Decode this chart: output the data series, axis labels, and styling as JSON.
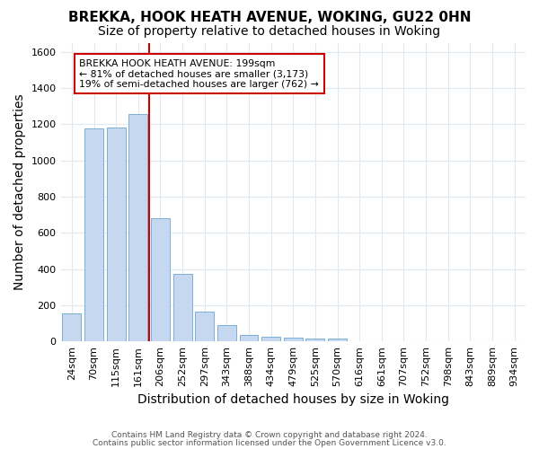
{
  "title1": "BREKKA, HOOK HEATH AVENUE, WOKING, GU22 0HN",
  "title2": "Size of property relative to detached houses in Woking",
  "xlabel": "Distribution of detached houses by size in Woking",
  "ylabel": "Number of detached properties",
  "categories": [
    "24sqm",
    "70sqm",
    "115sqm",
    "161sqm",
    "206sqm",
    "252sqm",
    "297sqm",
    "343sqm",
    "388sqm",
    "434sqm",
    "479sqm",
    "525sqm",
    "570sqm",
    "616sqm",
    "661sqm",
    "707sqm",
    "752sqm",
    "798sqm",
    "843sqm",
    "889sqm",
    "934sqm"
  ],
  "values": [
    155,
    1175,
    1180,
    1255,
    680,
    375,
    165,
    90,
    38,
    28,
    20,
    15,
    15,
    0,
    0,
    0,
    0,
    0,
    0,
    0,
    0
  ],
  "bar_color": "#c5d8ef",
  "bar_edge_color": "#7aafd4",
  "red_line_x": 3.5,
  "red_line_color": "#cc0000",
  "annotation_text": "BREKKA HOOK HEATH AVENUE: 199sqm\n← 81% of detached houses are smaller (3,173)\n19% of semi-detached houses are larger (762) →",
  "annotation_box_color": "#ffffff",
  "annotation_box_edge_color": "#cc0000",
  "ylim": [
    0,
    1650
  ],
  "yticks": [
    0,
    200,
    400,
    600,
    800,
    1000,
    1200,
    1400,
    1600
  ],
  "footnote1": "Contains HM Land Registry data © Crown copyright and database right 2024.",
  "footnote2": "Contains public sector information licensed under the Open Government Licence v3.0.",
  "background_color": "#ffffff",
  "grid_color": "#e0e8f0",
  "title_fontsize": 11,
  "subtitle_fontsize": 10,
  "tick_fontsize": 8,
  "axis_label_fontsize": 10
}
